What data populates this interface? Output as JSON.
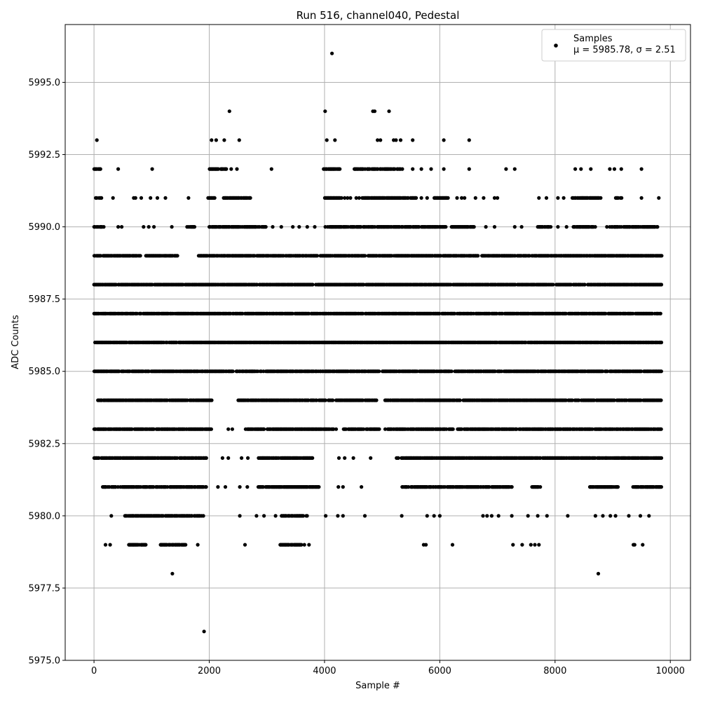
{
  "chart_data": {
    "type": "scatter",
    "title": "Run 516, channel040, Pedestal",
    "xlabel": "Sample #",
    "ylabel": "ADC Counts",
    "xlim": [
      -500,
      10350
    ],
    "ylim": [
      5975.0,
      5997.0
    ],
    "x_ticks": [
      0,
      2000,
      4000,
      6000,
      8000,
      10000
    ],
    "x_tick_labels": [
      "0",
      "2000",
      "4000",
      "6000",
      "8000",
      "10000"
    ],
    "y_ticks": [
      5975.0,
      5977.5,
      5980.0,
      5982.5,
      5985.0,
      5987.5,
      5990.0,
      5992.5,
      5995.0
    ],
    "y_tick_labels": [
      "5975.0",
      "5977.5",
      "5980.0",
      "5982.5",
      "5985.0",
      "5987.5",
      "5990.0",
      "5992.5",
      "5995.0"
    ],
    "grid": true,
    "legend_position": "top-right",
    "series": [
      {
        "name": "Samples",
        "legend_line2": "μ = 5985.78, σ = 2.51",
        "color": "#000000",
        "x_max": 9850,
        "levels": [
          {
            "y": 5996,
            "x": [
              4130
            ]
          },
          {
            "y": 5994,
            "x": [
              2350,
              4010,
              4840,
              4870,
              5120
            ]
          },
          {
            "y": 5993,
            "x": [
              50,
              2040,
              2120,
              2260,
              2520,
              4040,
              4180,
              4920,
              4970,
              5200,
              5240,
              5320,
              5530,
              6070,
              6510
            ]
          },
          {
            "y": 5978,
            "x": [
              1360,
              8750
            ]
          },
          {
            "y": 5976,
            "x": [
              1910
            ]
          }
        ],
        "bands": [
          {
            "y": 5992,
            "ranges": [
              [
                0,
                120
              ],
              [
                2000,
                2300
              ],
              [
                3980,
                4280
              ],
              [
                4500,
                5320
              ]
            ],
            "isolated": [
              420,
              1010,
              2380,
              2480,
              3080,
              5350,
              5530,
              5680,
              5850,
              6070,
              6510,
              7150,
              7300,
              8350,
              8450,
              8620,
              8950,
              9030,
              9150,
              9500
            ]
          },
          {
            "y": 5991,
            "ranges": [
              [
                30,
                140
              ],
              [
                1980,
                2100
              ],
              [
                2250,
                2720
              ],
              [
                4000,
                4300
              ],
              [
                4650,
                5600
              ],
              [
                5900,
                6150
              ],
              [
                8300,
                8800
              ],
              [
                9050,
                9150
              ]
            ],
            "isolated": [
              330,
              690,
              720,
              820,
              980,
              1100,
              1240,
              1640,
              4350,
              4400,
              4450,
              4550,
              4600,
              5680,
              5780,
              6300,
              6380,
              6430,
              6620,
              6760,
              6950,
              7000,
              7720,
              7850,
              8050,
              8150,
              9500,
              9800
            ]
          },
          {
            "y": 5990,
            "ranges": [
              [
                0,
                180
              ],
              [
                1600,
                1750
              ],
              [
                2000,
                3000
              ],
              [
                4000,
                6100
              ],
              [
                6200,
                6600
              ],
              [
                7700,
                7950
              ],
              [
                8300,
                8700
              ],
              [
                8950,
                9800
              ]
            ],
            "isolated": [
              420,
              480,
              860,
              950,
              1040,
              1350,
              3100,
              3250,
              3450,
              3560,
              3700,
              3830,
              6800,
              6950,
              7300,
              7420,
              8050,
              8200,
              8900
            ]
          },
          {
            "y": 5989,
            "ranges": [
              [
                0,
                800
              ],
              [
                900,
                1450
              ],
              [
                1800,
                9850
              ]
            ],
            "isolated": []
          },
          {
            "y": 5988,
            "ranges": [
              [
                0,
                9850
              ]
            ],
            "isolated": []
          },
          {
            "y": 5987,
            "ranges": [
              [
                0,
                9850
              ]
            ],
            "isolated": []
          },
          {
            "y": 5986,
            "ranges": [
              [
                0,
                9850
              ]
            ],
            "isolated": []
          },
          {
            "y": 5985,
            "ranges": [
              [
                0,
                4950
              ],
              [
                5000,
                9850
              ]
            ],
            "isolated": []
          },
          {
            "y": 5984,
            "ranges": [
              [
                50,
                2050
              ],
              [
                2500,
                4150
              ],
              [
                4200,
                4900
              ],
              [
                5050,
                9850
              ]
            ],
            "isolated": []
          },
          {
            "y": 5983,
            "ranges": [
              [
                0,
                2050
              ],
              [
                2600,
                4200
              ],
              [
                4300,
                4950
              ],
              [
                5050,
                9850
              ]
            ],
            "isolated": [
              2330,
              2400
            ]
          },
          {
            "y": 5982,
            "ranges": [
              [
                0,
                1950
              ],
              [
                2850,
                3800
              ],
              [
                5250,
                9850
              ]
            ],
            "isolated": [
              2230,
              2330,
              2560,
              2670,
              4250,
              4350,
              4500,
              4800
            ]
          },
          {
            "y": 5981,
            "ranges": [
              [
                150,
                1950
              ],
              [
                2850,
                3900
              ],
              [
                5330,
                7250
              ],
              [
                7600,
                7750
              ],
              [
                8600,
                9100
              ],
              [
                9350,
                9850
              ]
            ],
            "isolated": [
              2150,
              2280,
              2530,
              2660,
              4240,
              4320,
              4640
            ]
          },
          {
            "y": 5980,
            "ranges": [
              [
                520,
                1900
              ],
              [
                3250,
                3700
              ]
            ],
            "isolated": [
              300,
              2530,
              2820,
              2950,
              3150,
              4020,
              4230,
              4320,
              4700,
              5340,
              5780,
              5900,
              6000,
              6750,
              6820,
              6900,
              7020,
              7250,
              7530,
              7700,
              7860,
              8220,
              8700,
              8830,
              8960,
              9050,
              9280,
              9480,
              9630
            ]
          },
          {
            "y": 5979,
            "ranges": [
              [
                600,
                900
              ],
              [
                1150,
                1600
              ],
              [
                3200,
                3600
              ]
            ],
            "isolated": [
              200,
              280,
              1800,
              2620,
              3650,
              3730,
              5720,
              5760,
              6220,
              7270,
              7430,
              7580,
              7650,
              7720,
              9360,
              9380,
              9520
            ]
          }
        ]
      }
    ]
  }
}
